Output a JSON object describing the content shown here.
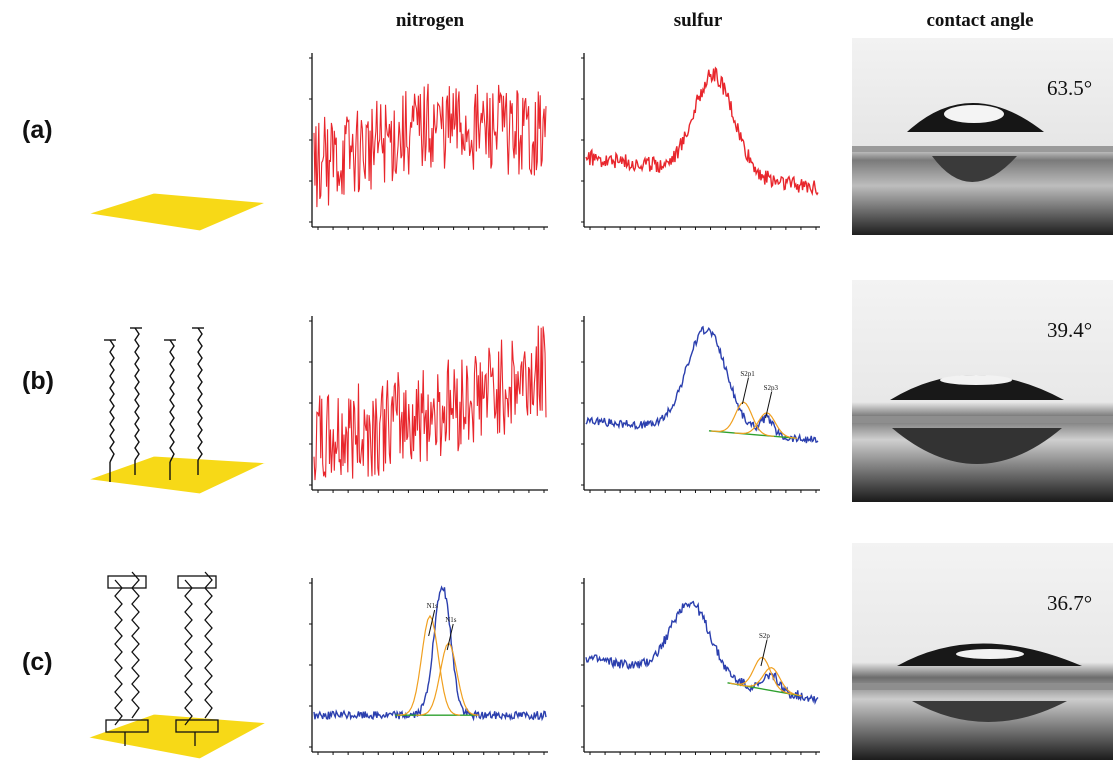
{
  "column_headers": {
    "nitrogen": "nitrogen",
    "sulfur": "sulfur",
    "contact_angle": "contact angle"
  },
  "rows": [
    {
      "label": "(a)",
      "contact_angle": "63.5°",
      "molecule": "none"
    },
    {
      "label": "(b)",
      "contact_angle": "39.4°",
      "molecule": "alkanethiol-SAM"
    },
    {
      "label": "(c)",
      "contact_angle": "36.7°",
      "molecule": "bilayer-SAM"
    }
  ],
  "colors": {
    "raw_spectrum": "#e8262c",
    "fit_envelope": "#2b3fae",
    "component": "#f0a020",
    "background": "#2ea02e",
    "substrate": "#f7d917"
  },
  "chart_data": [
    {
      "panel": "a-nitrogen",
      "type": "line",
      "shape": "noise",
      "trend": [
        0.35,
        0.6,
        0.55
      ],
      "noise": 0.55,
      "color": "raw_spectrum"
    },
    {
      "panel": "a-sulfur",
      "type": "line",
      "shape": "peak",
      "baseline": [
        0.4,
        0.22
      ],
      "peak_center": 0.55,
      "peak_height": 0.6,
      "peak_width": 0.12,
      "noise": 0.1,
      "color": "raw_spectrum"
    },
    {
      "panel": "b-nitrogen",
      "type": "line",
      "shape": "noise",
      "trend": [
        0.25,
        0.45,
        0.7
      ],
      "noise": 0.6,
      "color": "raw_spectrum"
    },
    {
      "panel": "b-sulfur",
      "type": "line",
      "shape": "peak-fitted",
      "baseline": [
        0.4,
        0.28
      ],
      "peak_center": 0.52,
      "peak_height": 0.62,
      "peak_width": 0.12,
      "noise": 0.05,
      "color": "fit_envelope",
      "components": [
        0.68,
        0.78
      ],
      "annotations": [
        "S2p1",
        "S2p3"
      ]
    },
    {
      "panel": "c-nitrogen",
      "type": "line",
      "shape": "peak-fitted",
      "baseline": [
        0.2,
        0.2
      ],
      "peak_center": 0.55,
      "peak_height": 0.72,
      "peak_width": 0.05,
      "noise": 0.05,
      "color": "fit_envelope",
      "components": [
        0.5,
        0.58
      ],
      "annotations": [
        "N1s",
        "N1s"
      ]
    },
    {
      "panel": "c-sulfur",
      "type": "line",
      "shape": "peak-fitted",
      "baseline": [
        0.55,
        0.3
      ],
      "peak_center": 0.45,
      "peak_height": 0.45,
      "peak_width": 0.12,
      "noise": 0.06,
      "color": "fit_envelope",
      "components": [
        0.76,
        0.8
      ],
      "annotations": [
        "S2p"
      ]
    }
  ]
}
